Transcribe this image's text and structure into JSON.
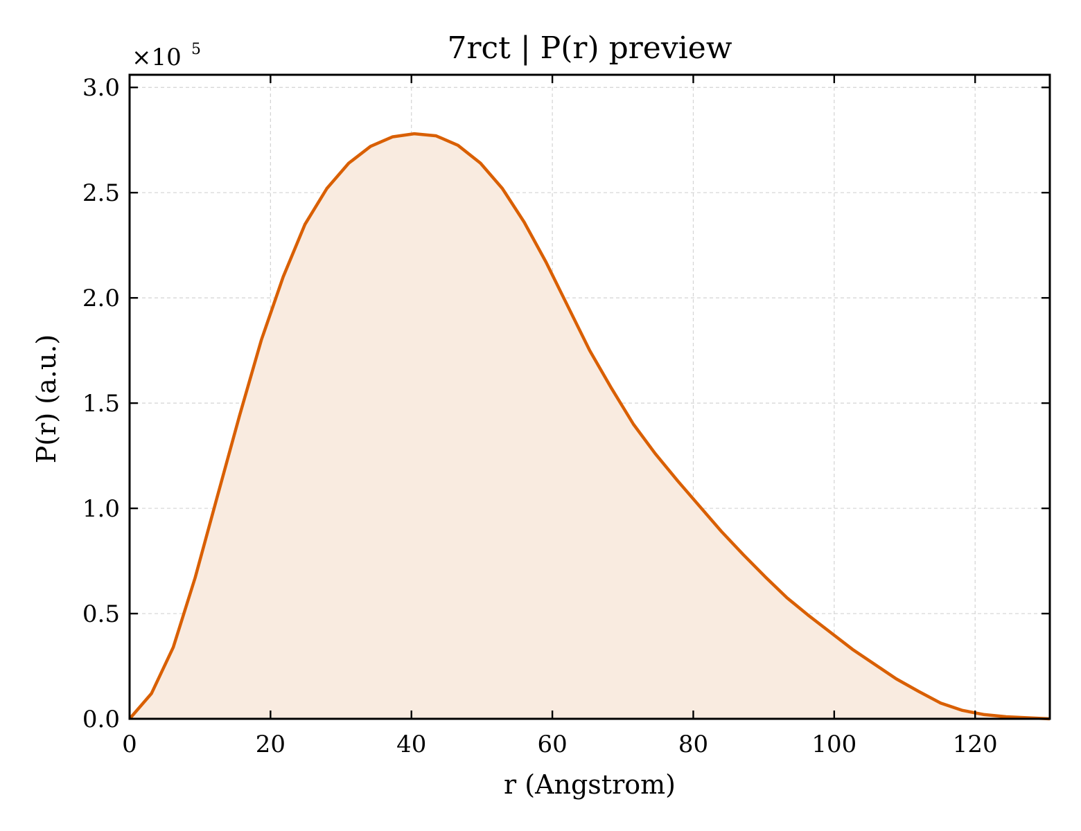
{
  "chart_data": {
    "type": "area",
    "title": "7rct | P(r) preview",
    "xlabel": "r (Angstrom)",
    "ylabel": "P(r) (a.u.)",
    "y_offset_text": "×10",
    "y_offset_exponent": "5",
    "xlim": [
      0,
      130.6
    ],
    "ylim": [
      0,
      3.06
    ],
    "y_scale_multiplier": 100000,
    "x_ticks": [
      0,
      20,
      40,
      60,
      80,
      100,
      120
    ],
    "x_tick_labels": [
      "0",
      "20",
      "40",
      "60",
      "80",
      "100",
      "120"
    ],
    "y_ticks": [
      0.0,
      0.5,
      1.0,
      1.5,
      2.0,
      2.5,
      3.0
    ],
    "y_tick_labels": [
      "0.0",
      "0.5",
      "1.0",
      "1.5",
      "2.0",
      "2.5",
      "3.0"
    ],
    "grid": true,
    "line_color": "#d95f02",
    "fill_color": "#f9ebe0",
    "series": [
      {
        "x": [
          0,
          3.1,
          6.2,
          9.3,
          12.4,
          15.6,
          18.7,
          21.8,
          24.9,
          28.0,
          31.1,
          34.2,
          37.3,
          40.4,
          43.5,
          46.6,
          49.8,
          52.9,
          56.0,
          59.1,
          62.2,
          65.3,
          68.4,
          71.5,
          74.6,
          77.8,
          80.9,
          84.0,
          87.1,
          90.2,
          93.3,
          96.4,
          99.5,
          102.6,
          105.7,
          108.8,
          112.0,
          115.1,
          118.2,
          121.3,
          124.4,
          127.5,
          130.6
        ],
        "y": [
          0.0,
          0.12,
          0.34,
          0.67,
          1.05,
          1.44,
          1.8,
          2.1,
          2.35,
          2.52,
          2.64,
          2.72,
          2.765,
          2.78,
          2.77,
          2.725,
          2.64,
          2.52,
          2.36,
          2.17,
          1.96,
          1.75,
          1.57,
          1.4,
          1.26,
          1.13,
          1.01,
          0.89,
          0.78,
          0.675,
          0.575,
          0.49,
          0.41,
          0.33,
          0.26,
          0.19,
          0.13,
          0.075,
          0.04,
          0.02,
          0.01,
          0.005,
          0.0
        ]
      }
    ]
  }
}
